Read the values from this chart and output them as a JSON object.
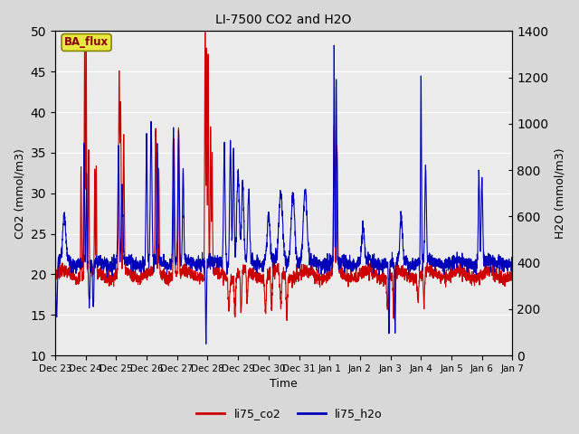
{
  "title": "LI-7500 CO2 and H2O",
  "xlabel": "Time",
  "ylabel_left": "CO2 (mmol/m3)",
  "ylabel_right": "H2O (mmol/m3)",
  "ylim_left": [
    10,
    50
  ],
  "ylim_right": [
    0,
    1400
  ],
  "yticks_left": [
    10,
    15,
    20,
    25,
    30,
    35,
    40,
    45,
    50
  ],
  "yticks_right": [
    0,
    200,
    400,
    600,
    800,
    1000,
    1200,
    1400
  ],
  "fig_bg_color": "#d8d8d8",
  "plot_bg_color": "#ebebeb",
  "grid_color": "#ffffff",
  "co2_color": "#cc0000",
  "h2o_color": "#0000bb",
  "line_width": 0.8,
  "annotation_text": "BA_flux",
  "annotation_fg": "#880000",
  "annotation_bg": "#e8e840",
  "annotation_border": "#888800",
  "legend_co2": "li75_co2",
  "legend_h2o": "li75_h2o",
  "x_tick_labels": [
    "Dec 23",
    "Dec 24",
    "Dec 25",
    "Dec 26",
    "Dec 27",
    "Dec 28",
    "Dec 29",
    "Dec 30",
    "Dec 31",
    "Jan 1",
    "Jan 2",
    "Jan 3",
    "Jan 4",
    "Jan 5",
    "Jan 6",
    "Jan 7"
  ],
  "n_points": 3000,
  "seed": 7
}
